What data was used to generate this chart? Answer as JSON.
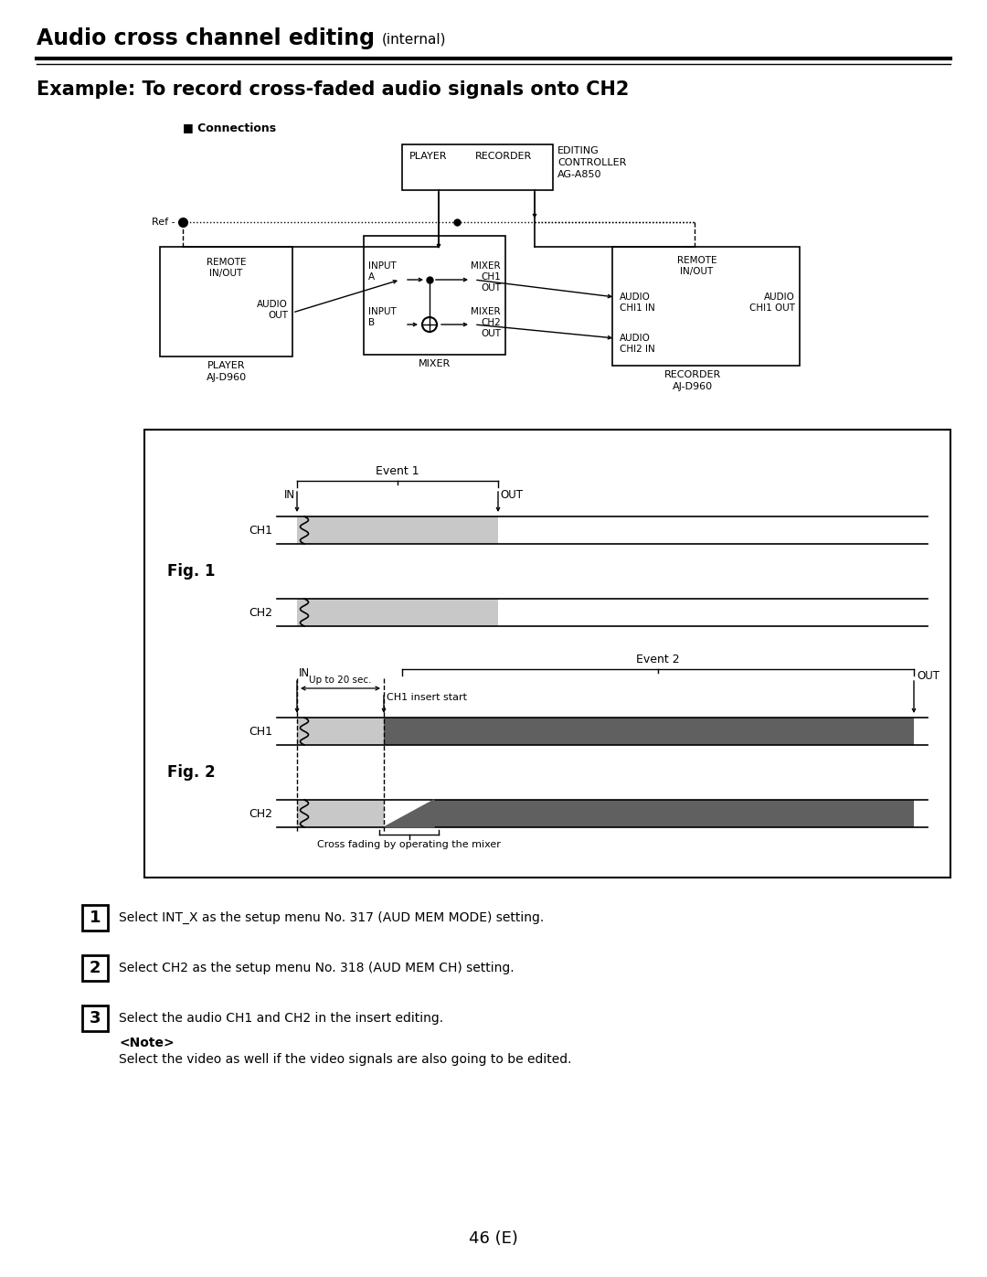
{
  "title_bold": "Audio cross channel editing",
  "title_normal": " (internal)",
  "subtitle": "Example: To record cross-faded audio signals onto CH2",
  "connections_label": "■ Connections",
  "page_number": "46 (E)",
  "bg_color": "#ffffff",
  "light_gray": "#c8c8c8",
  "dark_gray": "#606060",
  "step1": "Select INT_X as the setup menu No. 317 (AUD MEM MODE) setting.",
  "step2": "Select CH2 as the setup menu No. 318 (AUD MEM CH) setting.",
  "step3": "Select the audio CH1 and CH2 in the insert editing.",
  "note_label": "<Note>",
  "note_text": "Select the video as well if the video signals are also going to be edited."
}
